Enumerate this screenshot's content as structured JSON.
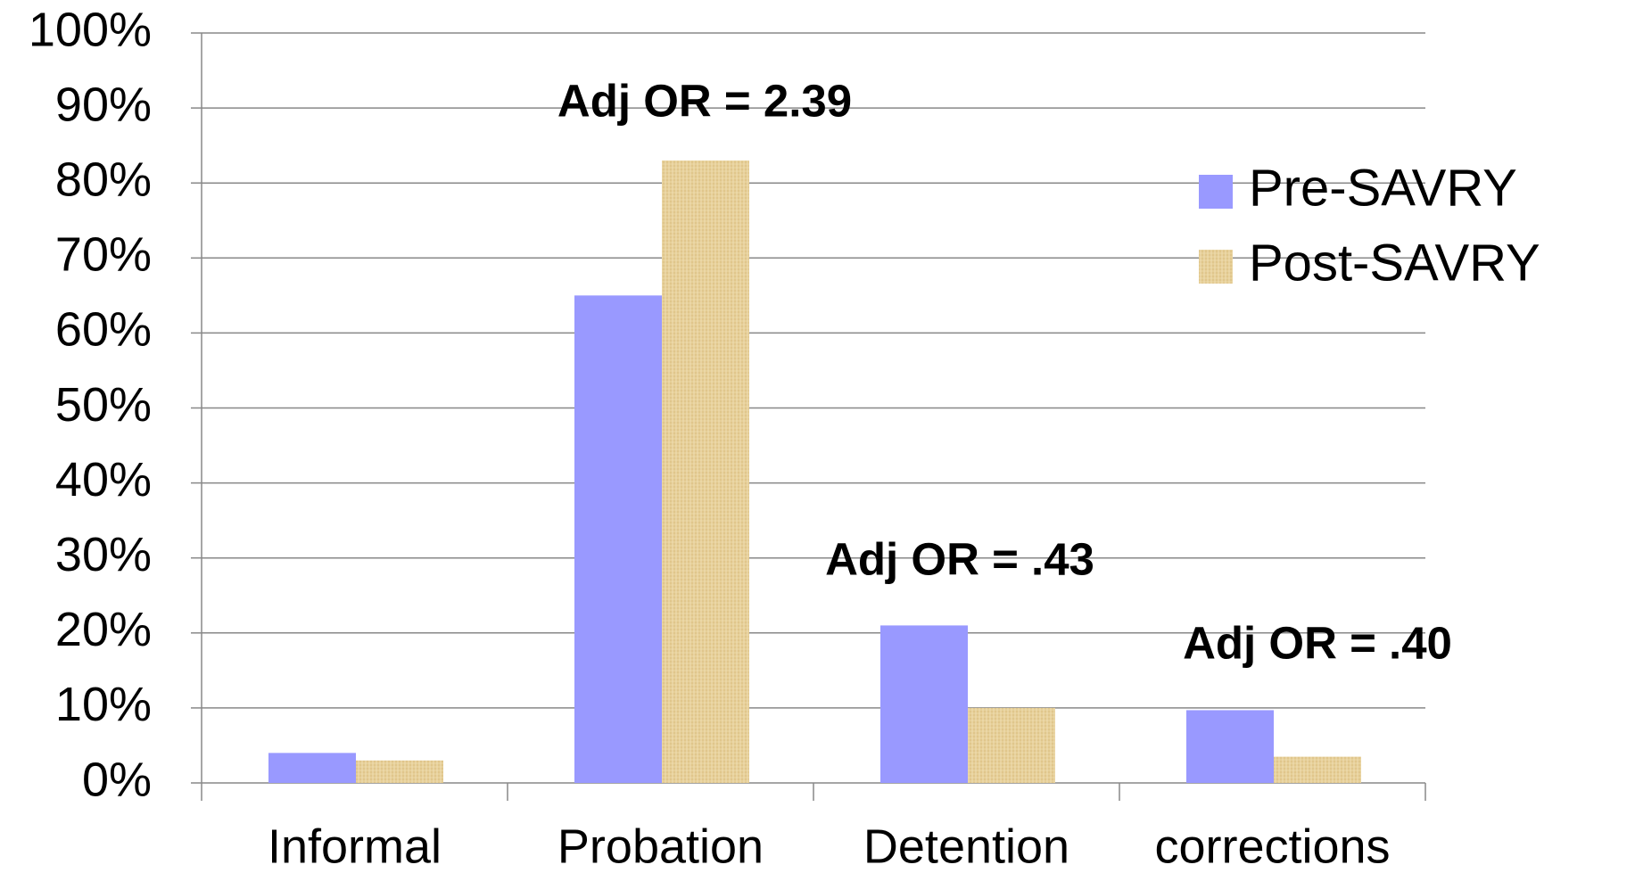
{
  "chart_data": {
    "type": "bar",
    "categories": [
      "Informal",
      "Probation",
      "Detention",
      "corrections"
    ],
    "series": [
      {
        "name": "Pre-SAVRY",
        "color": "#9999ff",
        "values": [
          4,
          65,
          21,
          9.7
        ]
      },
      {
        "name": "Post-SAVRY",
        "color": "#e6cf98",
        "values": [
          3,
          83,
          10,
          3.5
        ]
      }
    ],
    "annotations": [
      null,
      "Adj OR = 2.39",
      "Adj OR = .43",
      "Adj OR = .40"
    ],
    "ylim": [
      0,
      100
    ],
    "yticks": [
      {
        "value": 0,
        "label": "0%"
      },
      {
        "value": 10,
        "label": "10%"
      },
      {
        "value": 20,
        "label": "20%"
      },
      {
        "value": 30,
        "label": "30%"
      },
      {
        "value": 40,
        "label": "40%"
      },
      {
        "value": 50,
        "label": "50%"
      },
      {
        "value": 60,
        "label": "60%"
      },
      {
        "value": 70,
        "label": "70%"
      },
      {
        "value": 80,
        "label": "80%"
      },
      {
        "value": 90,
        "label": "90%"
      },
      {
        "value": 100,
        "label": "100%"
      }
    ],
    "grid": true,
    "legend": "right"
  }
}
